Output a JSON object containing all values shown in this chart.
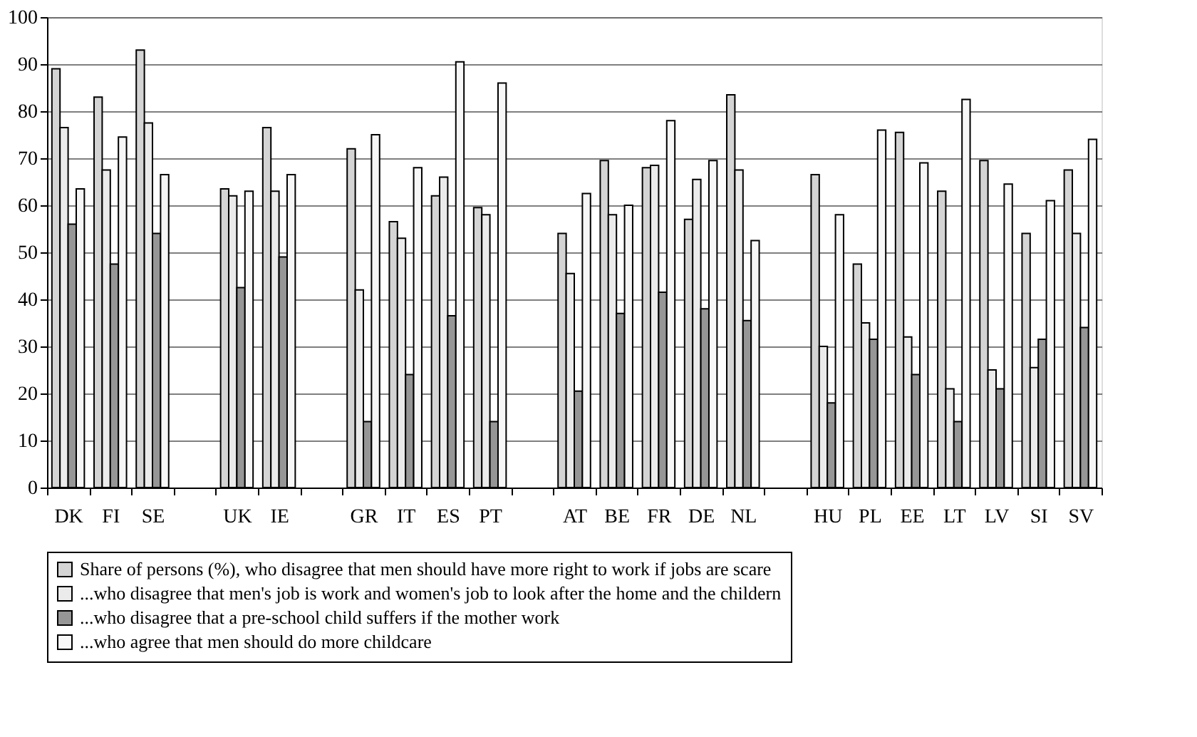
{
  "chart_data": {
    "type": "bar",
    "categories": [
      "DK",
      "FI",
      "SE",
      null,
      "UK",
      "IE",
      null,
      "GR",
      "IT",
      "ES",
      "PT",
      null,
      "AT",
      "BE",
      "FR",
      "DE",
      "NL",
      null,
      "HU",
      "PL",
      "EE",
      "LT",
      "LV",
      "SI",
      "SV"
    ],
    "series": [
      {
        "name": "Share of persons (%), who disagree that men should have more right to work if jobs are scare",
        "color": "#d4d4d4",
        "values": [
          89,
          83,
          93,
          null,
          63.5,
          76.5,
          null,
          72,
          56.5,
          62,
          59.5,
          null,
          54,
          69.5,
          68,
          57,
          83.5,
          null,
          66.5,
          47.5,
          75.5,
          63,
          69.5,
          54,
          67.5
        ]
      },
      {
        "name": "...who disagree that men's job is work and women's job to look after the home and the childern",
        "color": "#ebebeb",
        "values": [
          76.5,
          67.5,
          77.5,
          null,
          62,
          63,
          null,
          42,
          53,
          66,
          58,
          null,
          45.5,
          58,
          68.5,
          65.5,
          67.5,
          null,
          30,
          35,
          32,
          21,
          25,
          25.5,
          54
        ]
      },
      {
        "name": "...who disagree that a pre-school child suffers if the mother work",
        "color": "#969696",
        "values": [
          56,
          47.5,
          54,
          null,
          42.5,
          49,
          null,
          14,
          24,
          36.5,
          14,
          null,
          20.5,
          37,
          41.5,
          38,
          35.5,
          null,
          18,
          31.5,
          24,
          14,
          21,
          31.5,
          34
        ]
      },
      {
        "name": "...who agree that men should do more childcare",
        "color": "#f7f7f7",
        "values": [
          63.5,
          74.5,
          66.5,
          null,
          63,
          66.5,
          null,
          75,
          68,
          90.5,
          86,
          null,
          62.5,
          60,
          78,
          69.5,
          52.5,
          null,
          58,
          76,
          69,
          82.5,
          64.5,
          61,
          74
        ]
      }
    ],
    "ylim": [
      0,
      100
    ],
    "yticks": [
      0,
      10,
      20,
      30,
      40,
      50,
      60,
      70,
      80,
      90,
      100
    ],
    "grid": "y",
    "legend": "bottom"
  }
}
